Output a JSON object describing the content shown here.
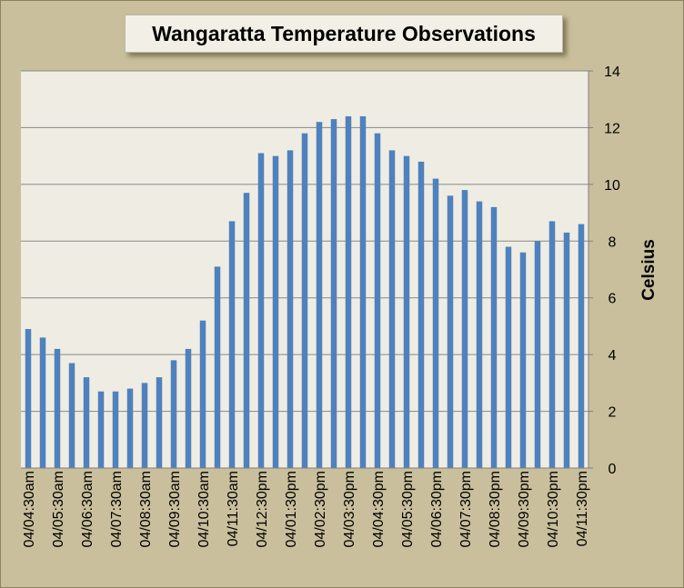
{
  "chart_data": {
    "type": "bar",
    "title": "Wangaratta Temperature Observations",
    "xlabel": "",
    "ylabel": "Celsius",
    "ylim": [
      0,
      14
    ],
    "yticks": [
      0,
      2,
      4,
      6,
      8,
      10,
      12,
      14
    ],
    "y_axis_side": "right",
    "grid": true,
    "legend": "none",
    "tick_labels": [
      "04/04:30am",
      "04/05:30am",
      "04/06:30am",
      "04/07:30am",
      "04/08:30am",
      "04/09:30am",
      "04/10:30am",
      "04/11:30am",
      "04/12:30pm",
      "04/01:30pm",
      "04/02:30pm",
      "04/03:30pm",
      "04/04:30pm",
      "04/05:30pm",
      "04/06:30pm",
      "04/07:30pm",
      "04/08:30pm",
      "04/09:30pm",
      "04/10:30pm",
      "04/11:30pm"
    ],
    "values": [
      4.9,
      4.6,
      4.2,
      3.7,
      3.2,
      2.7,
      2.7,
      2.8,
      3.0,
      3.2,
      3.8,
      4.2,
      5.2,
      7.1,
      8.7,
      9.7,
      11.1,
      11.0,
      11.2,
      11.8,
      12.2,
      12.3,
      12.4,
      12.4,
      11.8,
      11.2,
      11.0,
      10.8,
      10.2,
      9.6,
      9.8,
      9.4,
      9.2,
      7.8,
      7.6,
      8.0,
      8.7,
      8.3,
      8.6
    ],
    "colors": {
      "bar": "#4f81bd",
      "plot_background": "#efede3",
      "chart_background": "#c9bf9c",
      "gridline": "#878787"
    }
  }
}
